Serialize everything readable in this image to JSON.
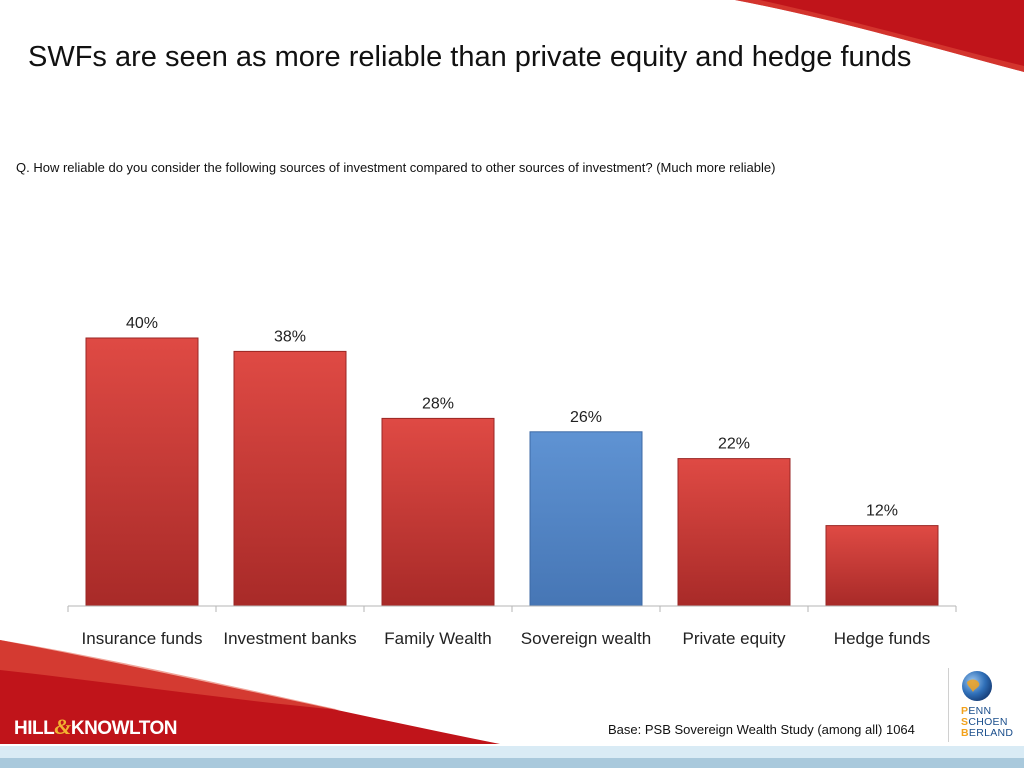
{
  "slide": {
    "title": "SWFs are seen as more reliable than private equity and hedge funds",
    "question": "Q. How reliable do you consider the following sources of investment compared to other sources of investment? (Much more reliable)",
    "base_note": "Base: PSB Sovereign Wealth Study (among all) 1064"
  },
  "logos": {
    "left": {
      "part1": "HILL",
      "ampersand": "&",
      "part2": "KNOWLTON",
      "icon": "hill-knowlton-logo"
    },
    "right": {
      "icon": "globe-icon",
      "lines": [
        {
          "cap": "P",
          "rest": "ENN"
        },
        {
          "cap": "S",
          "rest": "CHOEN"
        },
        {
          "cap": "B",
          "rest": "ERLAND"
        }
      ]
    }
  },
  "colors": {
    "bar_default": "#d94540",
    "bar_highlight": "#5b8fcf",
    "accent_red": "#c0141a",
    "footer_blue": "#cfe3ef"
  },
  "chart_data": {
    "type": "bar",
    "categories": [
      "Insurance funds",
      "Investment banks",
      "Family Wealth",
      "Sovereign wealth",
      "Private equity",
      "Hedge funds"
    ],
    "values": [
      40,
      38,
      28,
      26,
      22,
      12
    ],
    "data_labels": [
      "40%",
      "38%",
      "28%",
      "26%",
      "22%",
      "12%"
    ],
    "highlight_index": 3,
    "ylim": [
      0,
      40
    ],
    "unit": "%",
    "grid": false,
    "legend": "none"
  }
}
